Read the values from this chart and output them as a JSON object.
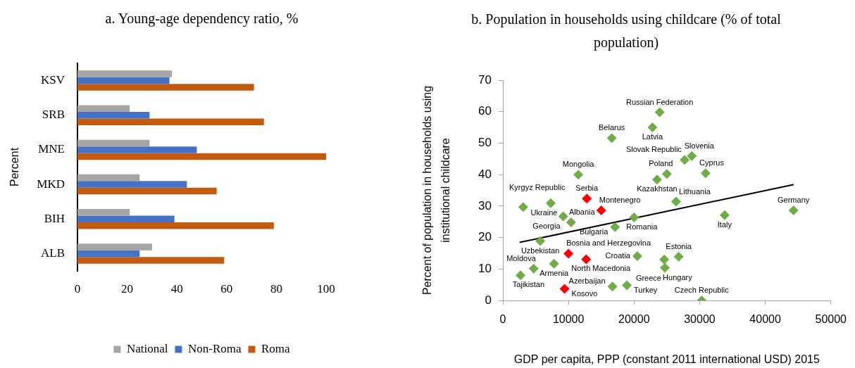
{
  "chart_data": [
    {
      "type": "bar",
      "orientation": "horizontal",
      "title": "a. Young-age dependency ratio, %",
      "ylabel": "Percent",
      "categories": [
        "KSV",
        "SRB",
        "MNE",
        "MKD",
        "BIH",
        "ALB"
      ],
      "series": [
        {
          "name": "National",
          "color": "#a5a5a5",
          "values": [
            38,
            21,
            29,
            25,
            21,
            30
          ]
        },
        {
          "name": "Non-Roma",
          "color": "#4472c4",
          "values": [
            37,
            29,
            48,
            44,
            39,
            25
          ]
        },
        {
          "name": "Roma",
          "color": "#c55a11",
          "values": [
            71,
            75,
            100,
            56,
            79,
            59
          ]
        }
      ],
      "xlim": [
        0,
        100
      ],
      "xticks": [
        0,
        20,
        40,
        60,
        80,
        100
      ],
      "legend": "bottom"
    },
    {
      "type": "scatter",
      "title": "b. Population in households using childcare (% of total population)",
      "xlabel": "GDP per capita, PPP (constant 2011 international USD) 2015",
      "ylabel": "Percent of population in households using institutional childcare",
      "xlim": [
        0,
        50000
      ],
      "xticks": [
        0,
        10000,
        20000,
        30000,
        40000,
        50000
      ],
      "ylim": [
        0,
        70
      ],
      "yticks": [
        0,
        10,
        20,
        30,
        40,
        50,
        60,
        70
      ],
      "marker": "diamond",
      "series": [
        {
          "type": "scatter",
          "x": [
            23900,
            22800,
            16600,
            28800,
            27700,
            30900,
            25000,
            23500,
            11500,
            26400,
            12800,
            7300,
            3100,
            15000,
            44300,
            33800,
            20000,
            9200,
            10400,
            17100,
            5700,
            10000,
            12700,
            7800,
            4700,
            2700,
            9400,
            20500,
            26800,
            24600,
            24700,
            18900,
            16700,
            30300
          ],
          "values": [
            59.8,
            55.0,
            51.6,
            45.9,
            44.7,
            40.4,
            40.2,
            38.4,
            40.0,
            31.4,
            32.4,
            30.9,
            29.7,
            28.6,
            28.6,
            27.1,
            26.4,
            26.7,
            24.8,
            23.3,
            18.9,
            14.9,
            13.1,
            11.7,
            10.1,
            8.0,
            3.7,
            14.1,
            13.9,
            13.0,
            10.4,
            4.8,
            4.4,
            0
          ],
          "colors": [
            "#70ad47",
            "#70ad47",
            "#70ad47",
            "#70ad47",
            "#70ad47",
            "#70ad47",
            "#70ad47",
            "#70ad47",
            "#70ad47",
            "#70ad47",
            "#ff0000",
            "#70ad47",
            "#70ad47",
            "#ff0000",
            "#70ad47",
            "#70ad47",
            "#70ad47",
            "#70ad47",
            "#70ad47",
            "#70ad47",
            "#70ad47",
            "#ff0000",
            "#ff0000",
            "#70ad47",
            "#70ad47",
            "#70ad47",
            "#ff0000",
            "#70ad47",
            "#70ad47",
            "#70ad47",
            "#70ad47",
            "#70ad47",
            "#70ad47",
            "#70ad47"
          ],
          "value_labels": [
            "Russian Federation",
            "Latvia",
            "Belarus",
            "Slovenia",
            "Slovak Republic",
            "Cyprus",
            "Poland",
            "Kazakhstan",
            "Mongolia",
            "Lithuania",
            "Serbia",
            "Ukraine",
            "Kyrgyz Republic",
            "Montenegro",
            "Germany",
            "Italy",
            "Romania",
            "Georgia",
            "Albania",
            "Bulgaria",
            "Uzbekistan",
            "Bosnia and Herzegovina",
            "North Macedonia",
            "Armenia",
            "Moldova",
            "Tajikistan",
            "Kosovo",
            "Croatia",
            "Estonia",
            "Greece",
            "Hungary",
            "Turkey",
            "Azerbaijan",
            "Czech Republic"
          ]
        },
        {
          "type": "line",
          "x": [
            2650,
            44250
          ],
          "values": [
            18.5,
            36.8
          ],
          "color": "#000000",
          "marker": "none"
        }
      ]
    }
  ]
}
